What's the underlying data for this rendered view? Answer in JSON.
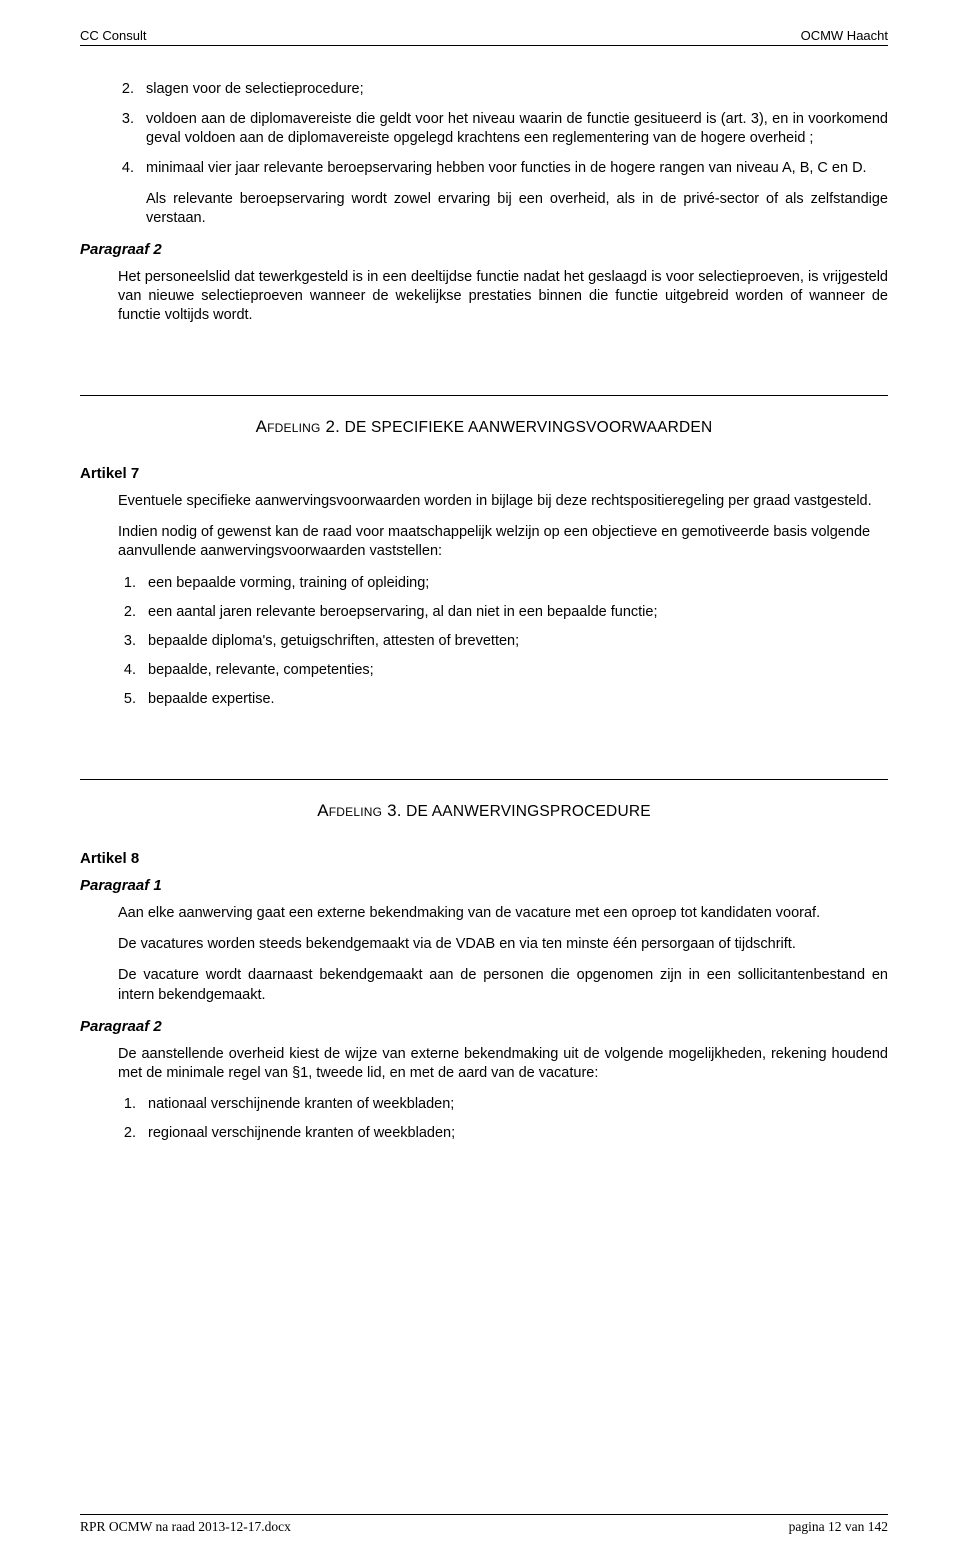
{
  "header": {
    "left": "CC Consult",
    "right": "OCMW Haacht"
  },
  "block1": {
    "items": [
      "slagen voor de selectieprocedure;",
      "voldoen aan de diplomavereiste die geldt voor het niveau waarin de functie gesitueerd is (art. 3), en in voorkomend geval voldoen aan de diplomavereiste opgelegd krachtens een reglementering van de hogere overheid ;",
      "minimaal vier jaar relevante beroepservaring hebben voor functies in de hogere rangen van niveau A, B, C en D."
    ],
    "start": 2,
    "followup": "Als relevante beroepservaring wordt zowel ervaring bij een overheid, als in de privé-sector of als zelfstandige verstaan.",
    "para2_label": "Paragraaf 2",
    "para2_body": "Het personeelslid dat tewerkgesteld is in een deeltijdse functie nadat het geslaagd is voor selectieproeven, is vrijgesteld van nieuwe selectieproeven wanneer de wekelijkse prestaties binnen die functie uitgebreid worden of wanneer de functie voltijds wordt."
  },
  "section2": {
    "title_lead": "Afdeling 2.",
    "title_rest": " DE SPECIFIEKE AANWERVINGSVOORWAARDEN",
    "artikel": "Artikel 7",
    "p1": "Eventuele specifieke aanwervingsvoorwaarden worden in bijlage bij deze rechtspositieregeling per graad vastgesteld.",
    "p2": "Indien nodig of gewenst kan de raad voor maatschappelijk welzijn op een objectieve en gemotiveerde basis volgende aanvullende aanwervingsvoorwaarden vaststellen:",
    "items": [
      "een bepaalde vorming, training of opleiding;",
      "een aantal jaren relevante beroepservaring, al dan niet in een bepaalde functie;",
      "bepaalde diploma's, getuigschriften, attesten of brevetten;",
      "bepaalde, relevante, competenties;",
      "bepaalde expertise."
    ]
  },
  "section3": {
    "title_lead": "Afdeling 3.",
    "title_rest": " DE AANWERVINGSPROCEDURE",
    "artikel": "Artikel 8",
    "para1_label": "Paragraaf 1",
    "para1_p1": "Aan elke aanwerving gaat een externe bekendmaking van de vacature met een oproep tot kandidaten vooraf.",
    "para1_p2": "De vacatures worden steeds bekendgemaakt via de VDAB en via ten minste één persorgaan of tijdschrift.",
    "para1_p3": "De vacature wordt daarnaast bekendgemaakt aan de personen die opgenomen zijn in een sollicitantenbestand en intern bekendgemaakt.",
    "para2_label": "Paragraaf 2",
    "para2_p1": "De aanstellende overheid kiest de wijze van externe bekendmaking uit de volgende mogelijkheden, rekening houdend met de minimale regel van §1, tweede lid, en met de aard van de vacature:",
    "items": [
      "nationaal verschijnende kranten of weekbladen;",
      "regionaal verschijnende kranten of weekbladen;"
    ]
  },
  "footer": {
    "left": "RPR OCMW na raad 2013-12-17.docx",
    "right": "pagina 12 van 142"
  }
}
